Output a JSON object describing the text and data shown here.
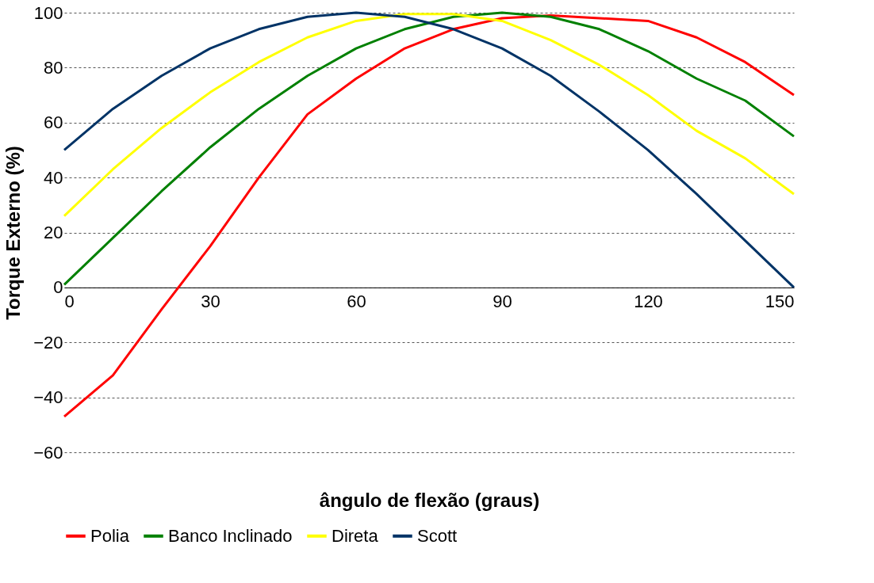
{
  "chart_data": {
    "type": "line",
    "xlabel": "ângulo de flexão (graus)",
    "ylabel": "Torque Externo (%)",
    "x": [
      0,
      10,
      20,
      30,
      40,
      50,
      60,
      70,
      80,
      90,
      100,
      110,
      120,
      130,
      140,
      150
    ],
    "series": [
      {
        "name": "Polia",
        "color": "#ff0000",
        "values": [
          -47,
          -32,
          -8,
          15,
          40,
          63,
          76,
          87,
          94,
          98,
          99,
          98,
          97,
          91,
          82,
          70
        ]
      },
      {
        "name": "Banco Inclinado",
        "color": "#008000",
        "values": [
          1,
          18,
          35,
          51,
          65,
          77,
          87,
          94,
          98.5,
          100,
          98.5,
          94,
          86,
          76,
          68,
          55
        ]
      },
      {
        "name": "Direta",
        "color": "#ffff00",
        "values": [
          26,
          43,
          58,
          71,
          82,
          91,
          97,
          99.5,
          99.5,
          97,
          90,
          81,
          70,
          57,
          47,
          34
        ]
      },
      {
        "name": "Scott",
        "color": "#003366",
        "values": [
          50,
          65,
          77,
          87,
          94,
          98.5,
          100,
          98.5,
          94,
          87,
          77,
          64,
          50,
          34,
          17,
          0
        ]
      }
    ],
    "xlim": [
      0,
      150
    ],
    "xticks": [
      0,
      30,
      60,
      90,
      120,
      150
    ],
    "ylim": [
      -60,
      100
    ],
    "yticks": [
      -60,
      -40,
      -20,
      0,
      20,
      40,
      60,
      80,
      100
    ],
    "grid": "y",
    "legend": "bottom",
    "line_style": "solid"
  }
}
